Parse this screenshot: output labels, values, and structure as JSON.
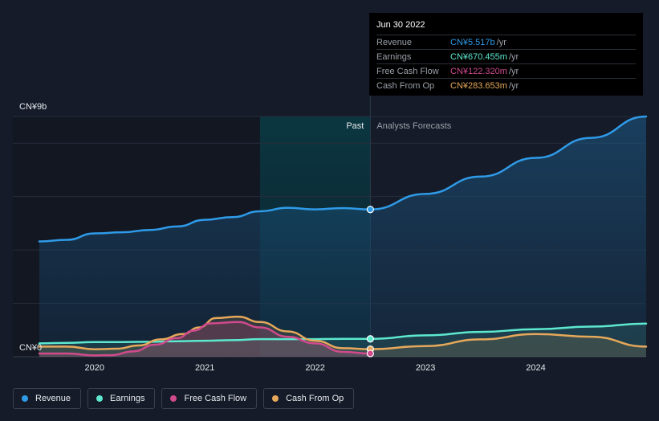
{
  "colors": {
    "revenue": "#2f9be8",
    "earnings": "#5de8cf",
    "fcf": "#d04a8c",
    "cfo": "#e6a85a",
    "grid": "#262d3a",
    "text": "#e6e8eb",
    "muted": "#9aa0a8"
  },
  "tooltip": {
    "date": "Jun 30 2022",
    "rows": [
      {
        "label": "Revenue",
        "value": "CN¥5.517b",
        "unit": "/yr",
        "series": "revenue"
      },
      {
        "label": "Earnings",
        "value": "CN¥670.455m",
        "unit": "/yr",
        "series": "earnings"
      },
      {
        "label": "Free Cash Flow",
        "value": "CN¥122.320m",
        "unit": "/yr",
        "series": "fcf"
      },
      {
        "label": "Cash From Op",
        "value": "CN¥283.653m",
        "unit": "/yr",
        "series": "cfo"
      }
    ]
  },
  "legend": [
    {
      "label": "Revenue",
      "series": "revenue"
    },
    {
      "label": "Earnings",
      "series": "earnings"
    },
    {
      "label": "Free Cash Flow",
      "series": "fcf"
    },
    {
      "label": "Cash From Op",
      "series": "cfo"
    }
  ],
  "chart_data": {
    "type": "line",
    "ylim": [
      0,
      9
    ],
    "y_unit": "CN¥b",
    "y_tick_labels": [
      "CN¥0",
      "CN¥9b"
    ],
    "xlim": [
      2019.5,
      2025.0
    ],
    "x_ticks": [
      2020,
      2021,
      2022,
      2023,
      2024
    ],
    "x_tick_labels": [
      "2020",
      "2021",
      "2022",
      "2023",
      "2024"
    ],
    "past_label": "Past",
    "forecast_label": "Analysts Forecasts",
    "past_end": 2022.5,
    "highlight_start": 2021.5,
    "grid": true,
    "series": [
      {
        "key": "revenue",
        "name": "Revenue",
        "x": [
          2019.5,
          2019.75,
          2020.0,
          2020.25,
          2020.5,
          2020.75,
          2021.0,
          2021.25,
          2021.5,
          2021.75,
          2022.0,
          2022.25,
          2022.5,
          2023.0,
          2023.5,
          2024.0,
          2024.5,
          2025.0
        ],
        "y": [
          4.32,
          4.38,
          4.62,
          4.66,
          4.75,
          4.88,
          5.13,
          5.23,
          5.45,
          5.58,
          5.52,
          5.57,
          5.517,
          6.1,
          6.75,
          7.45,
          8.2,
          9.0
        ]
      },
      {
        "key": "earnings",
        "name": "Earnings",
        "x": [
          2019.5,
          2019.75,
          2020.0,
          2020.25,
          2020.5,
          2020.75,
          2021.0,
          2021.25,
          2021.5,
          2021.75,
          2022.0,
          2022.25,
          2022.5,
          2023.0,
          2023.5,
          2024.0,
          2024.5,
          2025.0
        ],
        "y": [
          0.5,
          0.52,
          0.55,
          0.55,
          0.56,
          0.58,
          0.6,
          0.62,
          0.66,
          0.66,
          0.66,
          0.67,
          0.67,
          0.8,
          0.93,
          1.03,
          1.13,
          1.24
        ]
      },
      {
        "key": "fcf",
        "name": "Free Cash Flow",
        "x": [
          2019.5,
          2019.75,
          2020.0,
          2020.15,
          2020.35,
          2020.55,
          2020.75,
          2020.9,
          2021.05,
          2021.3,
          2021.5,
          2021.75,
          2022.0,
          2022.25,
          2022.5
        ],
        "y": [
          0.12,
          0.12,
          0.05,
          0.06,
          0.2,
          0.45,
          0.7,
          0.98,
          1.25,
          1.3,
          1.1,
          0.75,
          0.5,
          0.18,
          0.122
        ]
      },
      {
        "key": "cfo",
        "name": "Cash From Op",
        "x": [
          2019.5,
          2019.75,
          2020.0,
          2020.2,
          2020.4,
          2020.6,
          2020.8,
          2020.95,
          2021.1,
          2021.3,
          2021.5,
          2021.75,
          2022.0,
          2022.25,
          2022.5,
          2023.0,
          2023.5,
          2024.0,
          2024.5,
          2025.0
        ],
        "y": [
          0.38,
          0.38,
          0.28,
          0.3,
          0.42,
          0.65,
          0.85,
          1.1,
          1.45,
          1.5,
          1.3,
          0.95,
          0.6,
          0.32,
          0.284,
          0.4,
          0.65,
          0.85,
          0.75,
          0.38
        ]
      }
    ]
  }
}
